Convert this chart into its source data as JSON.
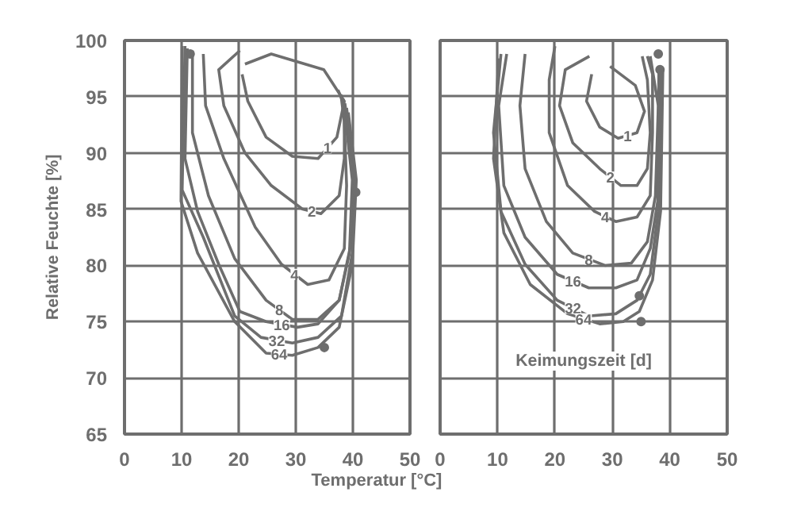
{
  "chart_data": [
    {
      "type": "line",
      "ylabel": "Relative Feuchte [%]",
      "xlabel": "Temperatur [°C]",
      "xlim": [
        0,
        50
      ],
      "ylim": [
        65,
        100
      ],
      "xticks": [
        0,
        10,
        20,
        30,
        40,
        50
      ],
      "yticks": [
        65,
        70,
        75,
        80,
        85,
        90,
        95,
        100
      ],
      "grid": true,
      "marker": "none",
      "series": [
        {
          "name": "1",
          "color": "#6e6e6e",
          "x": [
            21.1,
            25.7,
            34.9,
            38.5,
            37.2,
            33.9,
            29.4,
            24.8,
            21.6,
            20.6
          ],
          "values": [
            97.9,
            98.8,
            97.4,
            94.6,
            91.4,
            89.5,
            89.7,
            91.4,
            94.6,
            97
          ]
        },
        {
          "name": "2",
          "color": "#6e6e6e",
          "x": [
            20.2,
            16.5,
            17.4,
            21.1,
            25.7,
            31.2,
            34.4,
            37.6,
            38.5,
            38.5,
            37.4
          ],
          "values": [
            99.1,
            97.4,
            94.2,
            90,
            87.1,
            85,
            84.6,
            86.2,
            89.5,
            94.2,
            95.6
          ]
        },
        {
          "name": "4",
          "color": "#6e6e6e",
          "x": [
            13.8,
            14.2,
            17.4,
            22.9,
            27.5,
            32.1,
            35.8,
            38.5,
            38.9,
            38.5,
            37.9
          ],
          "values": [
            98.8,
            94.2,
            89.5,
            83.4,
            80.1,
            78.3,
            78.7,
            81.5,
            87.1,
            92.8,
            95.2
          ]
        },
        {
          "name": "8",
          "color": "#6e6e6e",
          "x": [
            11.9,
            11.9,
            14.7,
            19.3,
            24.8,
            29.4,
            33.9,
            37.6,
            39.4,
            39.9,
            38.3
          ],
          "values": [
            99.1,
            91.8,
            86.2,
            80.6,
            76.9,
            75.2,
            75.2,
            76.9,
            81.1,
            87.6,
            94.8
          ]
        },
        {
          "name": "16",
          "color": "#6e6e6e",
          "x": [
            11,
            10.6,
            12.8,
            16.5,
            20.2,
            24.8,
            30.3,
            33.9,
            37.6,
            39.9,
            40.4,
            38.6
          ],
          "values": [
            99.3,
            89.5,
            84.8,
            80.1,
            75.9,
            75,
            74.5,
            74.8,
            76.9,
            82.5,
            87.6,
            94.4
          ]
        },
        {
          "name": "32",
          "color": "#6e6e6e",
          "x": [
            10.6,
            10.1,
            13.8,
            19.3,
            23.9,
            29.4,
            33.9,
            38,
            39.9,
            40.4,
            38.9
          ],
          "values": [
            99.5,
            86.7,
            82.5,
            75.5,
            73.6,
            73.1,
            73.6,
            75.5,
            81.1,
            87.6,
            94
          ]
        },
        {
          "name": "64",
          "color": "#6e6e6e",
          "x": [
            10.1,
            9.9,
            12.8,
            19.3,
            24.8,
            29.4,
            33.9,
            37.6,
            39.9,
            40.6,
            39.2
          ],
          "values": [
            99.5,
            85.7,
            81.1,
            75,
            72.2,
            72,
            72.7,
            74.5,
            80.1,
            87.6,
            93.6
          ]
        },
        {
          "type": "scatter",
          "marker": "circle",
          "color": "#6e6e6e",
          "x": [
            35,
            40.5,
            11.5
          ],
          "values": [
            72.7,
            86.5,
            98.8
          ]
        }
      ]
    },
    {
      "type": "line",
      "xlim": [
        0,
        50
      ],
      "ylim": [
        65,
        100
      ],
      "xticks": [
        0,
        10,
        20,
        30,
        40,
        50
      ],
      "yticks": [
        65,
        70,
        75,
        80,
        85,
        90,
        95,
        100
      ],
      "grid": true,
      "marker": "none",
      "tick_labels": "x",
      "legend_title": "Keimungszeit [d]",
      "series": [
        {
          "name": "1",
          "color": "#6e6e6e",
          "x": [
            29.6,
            34,
            35.6,
            34.3,
            31,
            27.8,
            25.5,
            26.4
          ],
          "values": [
            97.7,
            96,
            93.7,
            91.8,
            91.3,
            92.3,
            94.6,
            97
          ]
        },
        {
          "name": "2",
          "color": "#6e6e6e",
          "x": [
            26,
            21.8,
            20.8,
            23.1,
            27.8,
            31.5,
            34.3,
            36.1,
            36.6,
            36.1,
            35.2
          ],
          "values": [
            98.6,
            97.4,
            94.2,
            90.9,
            88.6,
            87.1,
            87.1,
            88.6,
            91.8,
            96.5,
            98.6
          ]
        },
        {
          "name": "4",
          "color": "#6e6e6e",
          "x": [
            20,
            19,
            19,
            22.2,
            26.9,
            30.6,
            34.3,
            36.6,
            37,
            37,
            36.1
          ],
          "values": [
            99.5,
            96.5,
            91.8,
            87.1,
            84.8,
            83.9,
            84.3,
            86.2,
            91.8,
            97,
            98.6
          ]
        },
        {
          "name": "8",
          "color": "#6e6e6e",
          "x": [
            14.8,
            13.9,
            14.8,
            18.5,
            23.1,
            28.7,
            33.3,
            36.1,
            37.5,
            38,
            36.6
          ],
          "values": [
            98.8,
            94.2,
            88.6,
            83.9,
            81.1,
            80,
            80.2,
            82.1,
            86.2,
            94.2,
            98.6
          ]
        },
        {
          "name": "16",
          "color": "#6e6e6e",
          "x": [
            11.6,
            10.2,
            11.1,
            14.8,
            20.4,
            25.9,
            30.6,
            34.3,
            36.6,
            37.9,
            38.1
          ],
          "values": [
            98.8,
            94.2,
            87.1,
            82.5,
            79.2,
            78,
            78,
            78.7,
            81.5,
            85.7,
            97.4
          ]
        },
        {
          "name": "32",
          "color": "#6e6e6e",
          "x": [
            10.6,
            9.3,
            10.6,
            14.8,
            20.4,
            25.9,
            30.6,
            34.3,
            36.6,
            38,
            38.5
          ],
          "values": [
            98.8,
            91.8,
            84.8,
            80.1,
            76.9,
            75.5,
            75.7,
            76.9,
            79.2,
            84.8,
            97.4
          ]
        },
        {
          "name": "64",
          "color": "#6e6e6e",
          "x": [
            10.2,
            9.3,
            11.1,
            15.7,
            22.2,
            27.8,
            31.9,
            34.7,
            37,
            38.4,
            38.8
          ],
          "values": [
            98.4,
            89.5,
            82.9,
            78.3,
            75.7,
            74.8,
            75,
            75.9,
            78.7,
            84.8,
            97.4
          ]
        },
        {
          "type": "scatter",
          "marker": "circle",
          "color": "#6e6e6e",
          "x": [
            38,
            38.3,
            34.7,
            35
          ],
          "values": [
            98.8,
            97.4,
            77.3,
            75
          ]
        }
      ]
    }
  ]
}
